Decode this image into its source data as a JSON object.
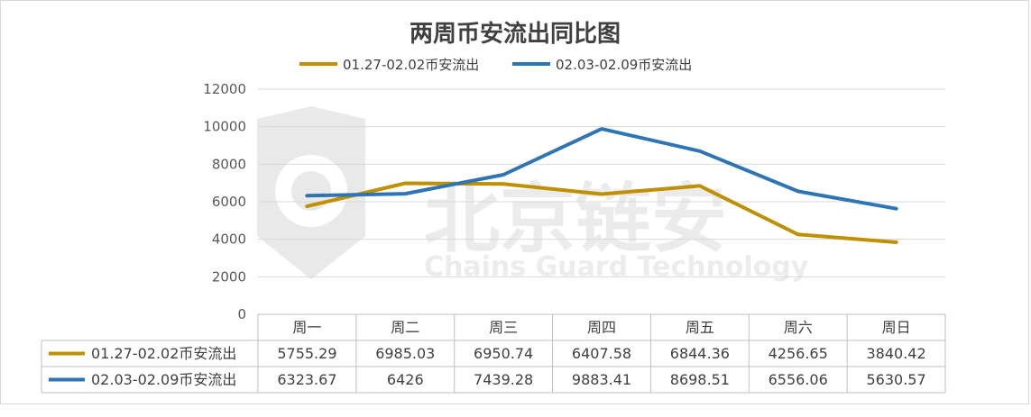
{
  "chart_data": {
    "type": "line",
    "title": "两周币安流出同比图",
    "categories": [
      "周一",
      "周二",
      "周三",
      "周四",
      "周五",
      "周六",
      "周日"
    ],
    "ylim": [
      0,
      12000
    ],
    "yticks": [
      0,
      2000,
      4000,
      6000,
      8000,
      10000,
      12000
    ],
    "grid": true,
    "legend_position": "top",
    "series": [
      {
        "name": "01.27-02.02币安流出",
        "color": "#BF9000",
        "values": [
          5755.29,
          6985.03,
          6950.74,
          6407.58,
          6844.36,
          4256.65,
          3840.42
        ],
        "labels": [
          "5755.29",
          "6985.03",
          "6950.74",
          "6407.58",
          "6844.36",
          "4256.65",
          "3840.42"
        ]
      },
      {
        "name": "02.03-02.09币安流出",
        "color": "#2E75B6",
        "values": [
          6323.67,
          6426,
          7439.28,
          9883.41,
          8698.51,
          6556.06,
          5630.57
        ],
        "labels": [
          "6323.67",
          "6426",
          "7439.28",
          "9883.41",
          "8698.51",
          "6556.06",
          "5630.57"
        ]
      }
    ]
  },
  "watermark": {
    "cn": "北京链安",
    "en": "Chains Guard Technology"
  }
}
